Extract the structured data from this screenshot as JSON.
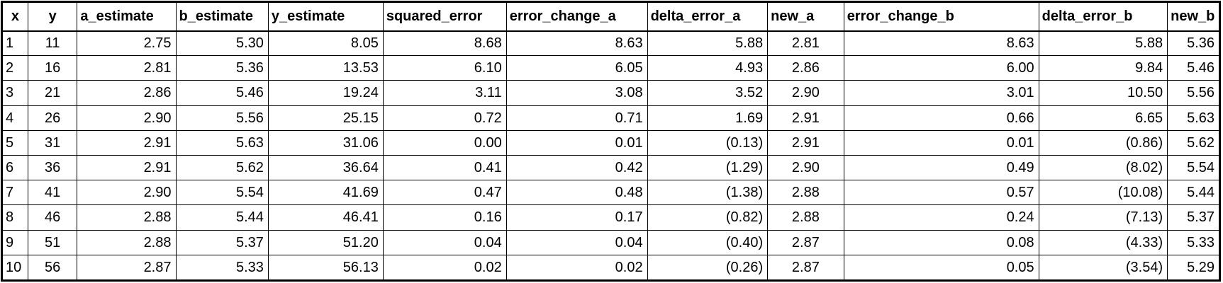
{
  "columns": [
    "x",
    "y",
    "a_estimate",
    "b_estimate",
    "y_estimate",
    "squared_error",
    "error_change_a",
    "delta_error_a",
    "new_a",
    "error_change_b",
    "delta_error_b",
    "new_b"
  ],
  "rows": [
    [
      "1",
      "11",
      "2.75",
      "5.30",
      "8.05",
      "8.68",
      "8.63",
      "5.88",
      "2.81",
      "8.63",
      "5.88",
      "5.36"
    ],
    [
      "2",
      "16",
      "2.81",
      "5.36",
      "13.53",
      "6.10",
      "6.05",
      "4.93",
      "2.86",
      "6.00",
      "9.84",
      "5.46"
    ],
    [
      "3",
      "21",
      "2.86",
      "5.46",
      "19.24",
      "3.11",
      "3.08",
      "3.52",
      "2.90",
      "3.01",
      "10.50",
      "5.56"
    ],
    [
      "4",
      "26",
      "2.90",
      "5.56",
      "25.15",
      "0.72",
      "0.71",
      "1.69",
      "2.91",
      "0.66",
      "6.65",
      "5.63"
    ],
    [
      "5",
      "31",
      "2.91",
      "5.63",
      "31.06",
      "0.00",
      "0.01",
      "(0.13)",
      "2.91",
      "0.01",
      "(0.86)",
      "5.62"
    ],
    [
      "6",
      "36",
      "2.91",
      "5.62",
      "36.64",
      "0.41",
      "0.42",
      "(1.29)",
      "2.90",
      "0.49",
      "(8.02)",
      "5.54"
    ],
    [
      "7",
      "41",
      "2.90",
      "5.54",
      "41.69",
      "0.47",
      "0.48",
      "(1.38)",
      "2.88",
      "0.57",
      "(10.08)",
      "5.44"
    ],
    [
      "8",
      "46",
      "2.88",
      "5.44",
      "46.41",
      "0.16",
      "0.17",
      "(0.82)",
      "2.88",
      "0.24",
      "(7.13)",
      "5.37"
    ],
    [
      "9",
      "51",
      "2.88",
      "5.37",
      "51.20",
      "0.04",
      "0.04",
      "(0.40)",
      "2.87",
      "0.08",
      "(4.33)",
      "5.33"
    ],
    [
      "10",
      "56",
      "2.87",
      "5.33",
      "56.13",
      "0.02",
      "0.02",
      "(0.26)",
      "2.87",
      "0.05",
      "(3.54)",
      "5.29"
    ]
  ]
}
